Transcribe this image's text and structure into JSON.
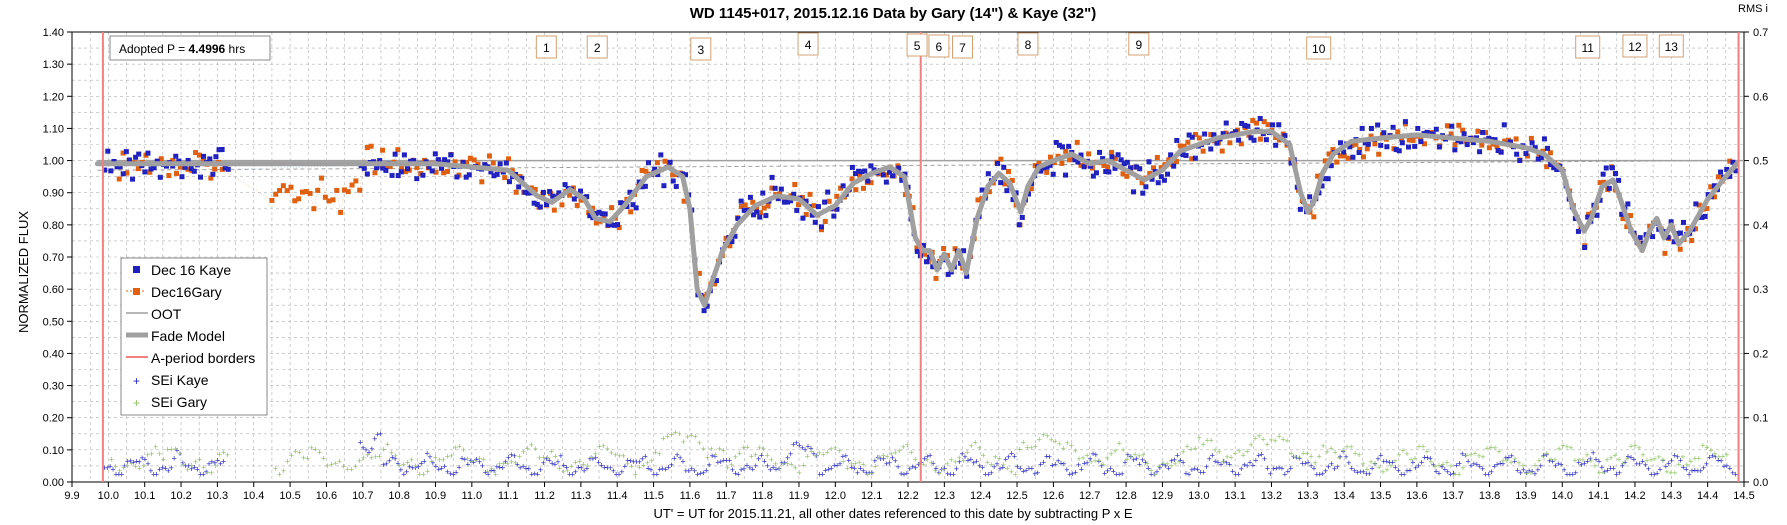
{
  "chart_data": {
    "type": "scatter",
    "title": "WD 1145+017, 2015.12.16 Data by Gary (14\") & Kaye (32\")",
    "xlabel": "UT' = UT for 2015.11.21, all other dates referenced to this date by subtracting P x E",
    "ylabel": "NORMALIZED FLUX",
    "y2label": "RMS i",
    "xlim": [
      9.9,
      14.5
    ],
    "ylim": [
      0.0,
      1.4
    ],
    "y2lim": [
      0.0,
      0.7
    ],
    "grid": true,
    "x_ticks": [
      "9.9",
      "10.0",
      "10.1",
      "10.2",
      "10.3",
      "10.4",
      "10.5",
      "10.6",
      "10.7",
      "10.8",
      "10.9",
      "11.0",
      "11.1",
      "11.2",
      "11.3",
      "11.4",
      "11.5",
      "11.6",
      "11.7",
      "11.8",
      "11.9",
      "12.0",
      "12.1",
      "12.2",
      "12.3",
      "12.4",
      "12.5",
      "12.6",
      "12.7",
      "12.8",
      "12.9",
      "13.0",
      "13.1",
      "13.2",
      "13.3",
      "13.4",
      "13.5",
      "13.6",
      "13.7",
      "13.8",
      "13.9",
      "14.0",
      "14.1",
      "14.2",
      "14.3",
      "14.4",
      "14.5"
    ],
    "y_ticks": [
      "0.00",
      "0.10",
      "0.20",
      "0.30",
      "0.40",
      "0.50",
      "0.60",
      "0.70",
      "0.80",
      "0.90",
      "1.00",
      "1.10",
      "1.20",
      "1.30",
      "1.40"
    ],
    "y2_ticks": [
      "0.0",
      "0.1",
      "0.2",
      "0.3",
      "0.4",
      "0.5",
      "0.6",
      "0.7"
    ],
    "adopted_period": {
      "label": "Adopted P = ",
      "value": "4.4996",
      "unit": " hrs"
    },
    "legend_position": "left",
    "legend": [
      "Dec 16 Kaye",
      "Dec16Gary",
      "OOT",
      "Fade Model",
      "A-period borders",
      "SEi Kaye",
      "SEi Gary"
    ],
    "oot_level": 1.0,
    "period_borders": [
      9.985,
      12.235,
      14.485
    ],
    "colors": {
      "kaye": "#1f1fbf",
      "gary": "#e06010",
      "oot": "#a0a0a0",
      "model": "#a0a0a0",
      "border": "#f08080",
      "sei_kaye": "#1f1fbf",
      "sei_gary": "#8fc060",
      "grid": "#b0b0b0"
    },
    "fade_model": {
      "x": [
        9.97,
        10.3,
        10.9,
        11.1,
        11.18,
        11.22,
        11.27,
        11.31,
        11.34,
        11.38,
        11.42,
        11.48,
        11.54,
        11.58,
        11.6,
        11.62,
        11.64,
        11.66,
        11.69,
        11.73,
        11.78,
        11.84,
        11.9,
        11.95,
        12.0,
        12.05,
        12.1,
        12.15,
        12.19,
        12.22,
        12.24,
        12.26,
        12.28,
        12.3,
        12.32,
        12.34,
        12.36,
        12.39,
        12.42,
        12.45,
        12.48,
        12.51,
        12.53,
        12.56,
        12.6,
        12.65,
        12.7,
        12.75,
        12.8,
        12.85,
        12.9,
        12.95,
        13.0,
        13.05,
        13.1,
        13.15,
        13.2,
        13.25,
        13.28,
        13.3,
        13.32,
        13.34,
        13.37,
        13.42,
        13.5,
        13.6,
        13.7,
        13.8,
        13.9,
        13.95,
        14.0,
        14.03,
        14.06,
        14.08,
        14.11,
        14.14,
        14.16,
        14.19,
        14.22,
        14.24,
        14.26,
        14.28,
        14.3,
        14.32,
        14.35,
        14.4,
        14.45,
        14.48
      ],
      "y": [
        0.99,
        0.99,
        0.99,
        0.97,
        0.89,
        0.87,
        0.91,
        0.88,
        0.82,
        0.81,
        0.86,
        0.95,
        0.98,
        0.95,
        0.85,
        0.6,
        0.55,
        0.62,
        0.72,
        0.8,
        0.86,
        0.89,
        0.88,
        0.83,
        0.86,
        0.93,
        0.96,
        0.98,
        0.95,
        0.76,
        0.72,
        0.72,
        0.66,
        0.71,
        0.66,
        0.72,
        0.65,
        0.82,
        0.92,
        0.96,
        0.93,
        0.84,
        0.92,
        0.98,
        1.0,
        1.02,
        0.99,
        1.0,
        0.97,
        0.94,
        0.97,
        1.03,
        1.05,
        1.07,
        1.08,
        1.09,
        1.09,
        1.05,
        0.9,
        0.84,
        0.88,
        0.96,
        1.02,
        1.06,
        1.07,
        1.08,
        1.07,
        1.06,
        1.04,
        1.02,
        0.97,
        0.85,
        0.78,
        0.82,
        0.92,
        0.94,
        0.88,
        0.78,
        0.72,
        0.78,
        0.82,
        0.76,
        0.8,
        0.74,
        0.78,
        0.88,
        0.95,
        0.99
      ]
    },
    "event_labels": [
      {
        "text": "1",
        "x": 11.205
      },
      {
        "text": "2",
        "x": 11.345
      },
      {
        "text": "3",
        "x": 11.63
      },
      {
        "text": "4",
        "x": 11.925
      },
      {
        "text": "5",
        "x": 12.225
      },
      {
        "text": "6",
        "x": 12.285
      },
      {
        "text": "7",
        "x": 12.35
      },
      {
        "text": "8",
        "x": 12.53
      },
      {
        "text": "9",
        "x": 12.835
      },
      {
        "text": "10",
        "x": 13.33
      },
      {
        "text": "11",
        "x": 14.07
      },
      {
        "text": "12",
        "x": 14.2
      },
      {
        "text": "13",
        "x": 14.3
      }
    ]
  }
}
